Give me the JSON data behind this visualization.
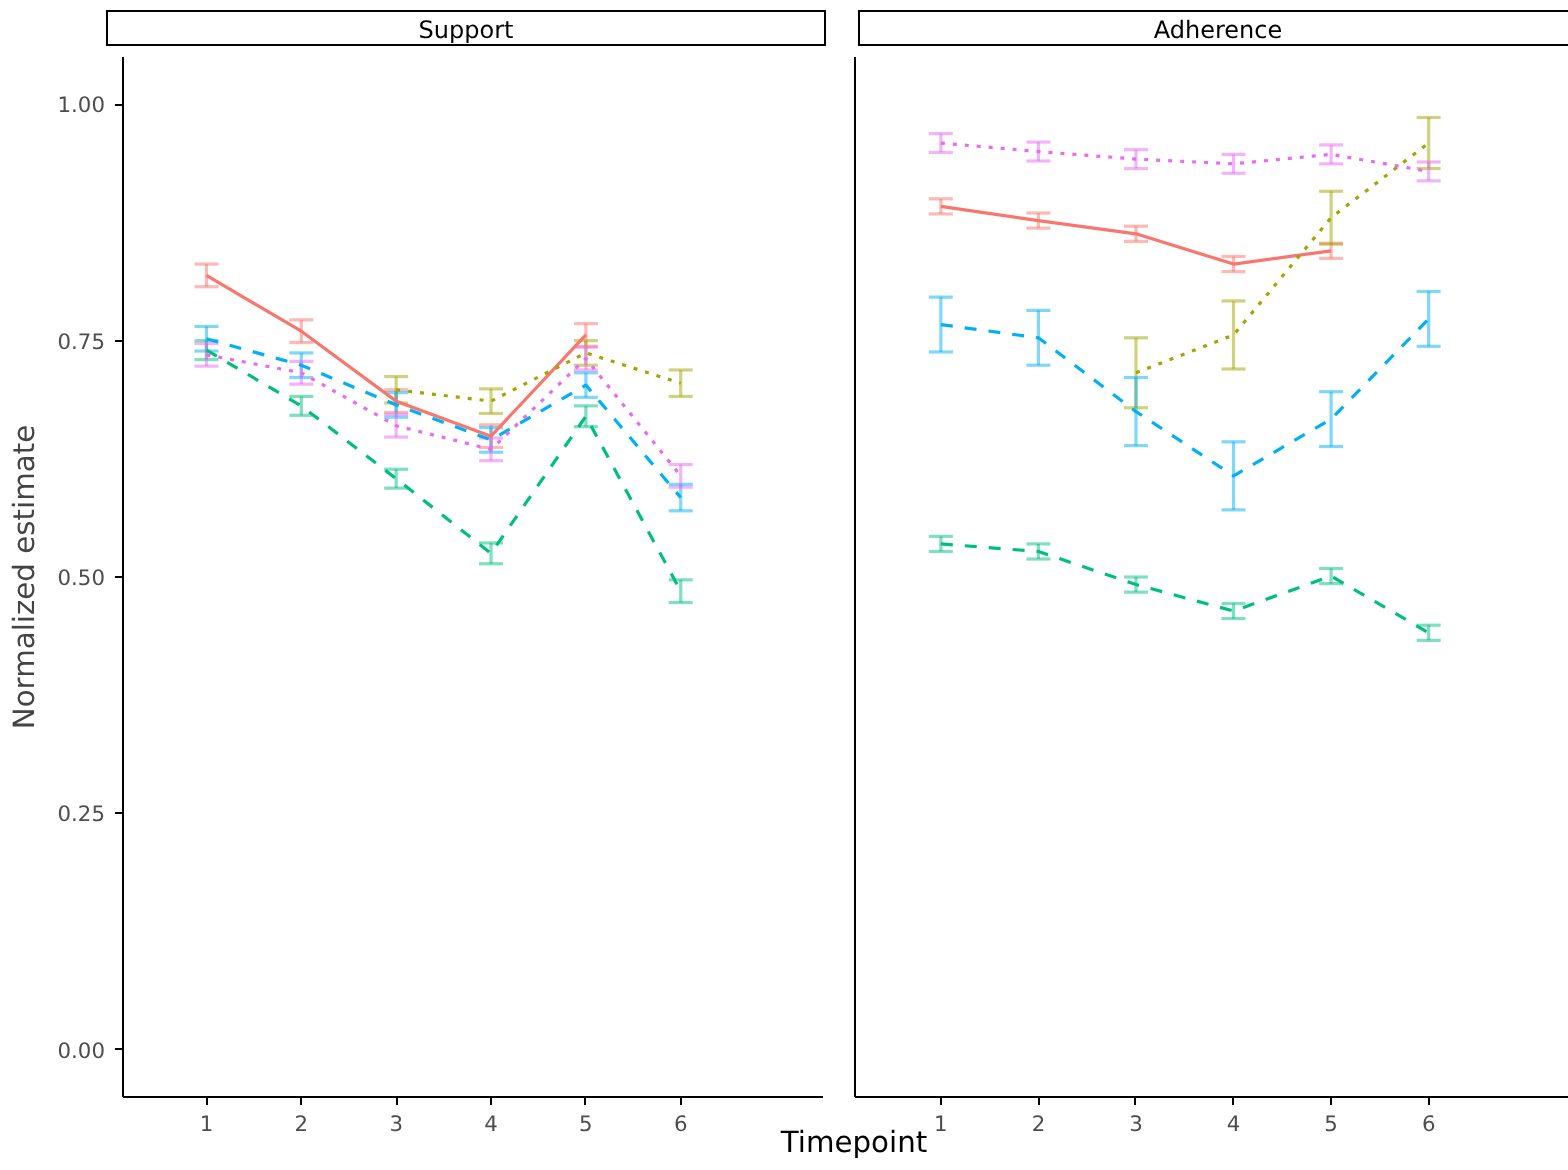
{
  "chart_data": [
    {
      "type": "line",
      "title": "Support",
      "ylabel": "Normalized estimate",
      "xlabel": "Timepoint",
      "x": [
        1,
        2,
        3,
        4,
        5,
        6
      ],
      "xlim": [
        0.12,
        7.5
      ],
      "xticks": [
        1,
        2,
        3,
        4,
        5,
        6
      ],
      "ylim": [
        -0.05,
        1.05
      ],
      "yticks": [
        {
          "value": 0,
          "label": "0.00"
        },
        {
          "value": 0.25,
          "label": "0.25"
        },
        {
          "value": 0.5,
          "label": "0.50"
        },
        {
          "value": 0.75,
          "label": "0.75"
        },
        {
          "value": 1,
          "label": "1.00"
        }
      ],
      "grid": false,
      "marker": "none",
      "series": [
        {
          "color": "#f8766d",
          "line_style": "solid",
          "values": [
            0.819,
            0.76,
            0.686,
            0.649,
            0.756,
            null
          ],
          "errors": [
            0.012,
            0.012,
            0.012,
            0.012,
            0.012,
            null
          ]
        },
        {
          "color": "#a3a500",
          "line_style": "dotted",
          "values": [
            null,
            null,
            0.698,
            0.686,
            0.737,
            0.705
          ],
          "errors": [
            null,
            null,
            0.014,
            0.013,
            0.013,
            0.014
          ]
        },
        {
          "color": "#00bf7d",
          "line_style": "dashed",
          "values": [
            0.74,
            0.681,
            0.604,
            0.525,
            0.67,
            0.485
          ],
          "errors": [
            0.01,
            0.01,
            0.01,
            0.011,
            0.011,
            0.012
          ]
        },
        {
          "color": "#00b0f6",
          "line_style": "dashed",
          "values": [
            0.752,
            0.724,
            0.682,
            0.645,
            0.703,
            0.584
          ],
          "errors": [
            0.013,
            0.013,
            0.013,
            0.013,
            0.013,
            0.014
          ]
        },
        {
          "color": "#e76bf3",
          "line_style": "dotted",
          "values": [
            0.735,
            0.716,
            0.66,
            0.635,
            0.731,
            0.607
          ],
          "errors": [
            0.012,
            0.012,
            0.012,
            0.012,
            0.012,
            0.012
          ]
        }
      ]
    },
    {
      "type": "line",
      "title": "Adherence",
      "x": [
        1,
        2,
        3,
        4,
        5,
        6
      ],
      "xlim": [
        0.12,
        7.5
      ],
      "xticks": [
        1,
        2,
        3,
        4,
        5,
        6
      ],
      "ylim": [
        -0.05,
        1.05
      ],
      "tick_labels": "x",
      "grid": false,
      "marker": "none",
      "series": [
        {
          "color": "#f8766d",
          "line_style": "solid",
          "values": [
            0.892,
            0.877,
            0.863,
            0.831,
            0.845,
            null
          ],
          "errors": [
            0.008,
            0.008,
            0.008,
            0.008,
            0.008,
            null
          ]
        },
        {
          "color": "#a3a500",
          "line_style": "dotted",
          "values": [
            null,
            null,
            0.716,
            0.756,
            0.88,
            0.959
          ],
          "errors": [
            null,
            null,
            0.037,
            0.036,
            0.028,
            0.027
          ]
        },
        {
          "color": "#00bf7d",
          "line_style": "dashed",
          "values": [
            0.535,
            0.527,
            0.492,
            0.464,
            0.501,
            0.441
          ],
          "errors": [
            0.008,
            0.008,
            0.008,
            0.008,
            0.008,
            0.008
          ]
        },
        {
          "color": "#00b0f6",
          "line_style": "dashed",
          "values": [
            0.767,
            0.753,
            0.675,
            0.607,
            0.667,
            0.773
          ],
          "errors": [
            0.029,
            0.029,
            0.036,
            0.036,
            0.029,
            0.029
          ]
        },
        {
          "color": "#e76bf3",
          "line_style": "dotted",
          "values": [
            0.959,
            0.95,
            0.942,
            0.937,
            0.947,
            0.929
          ],
          "errors": [
            0.01,
            0.01,
            0.01,
            0.01,
            0.01,
            0.01
          ]
        }
      ]
    }
  ]
}
